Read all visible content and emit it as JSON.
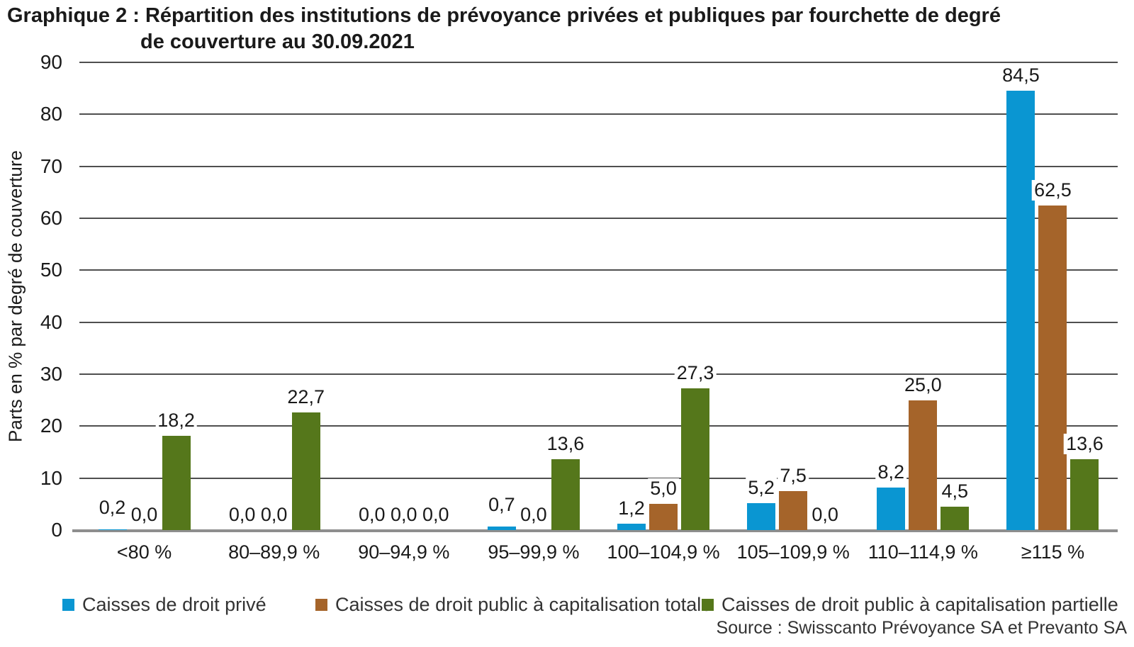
{
  "title": {
    "line1": "Graphique 2 : Répartition des institutions de prévoyance privées et publiques par fourchette de degré",
    "line2": "de couverture au 30.09.2021"
  },
  "source": "Source : Swisscanto Prévoyance SA et Prevanto SA",
  "chart_data": {
    "type": "bar",
    "title": "Graphique 2 : Répartition des institutions de prévoyance privées et publiques par fourchette de degré de couverture au 30.09.2021",
    "xlabel": "",
    "ylabel": "Parts en % par degré de couverture",
    "ylim": [
      0,
      90
    ],
    "yticks": [
      0,
      10,
      20,
      30,
      40,
      50,
      60,
      70,
      80,
      90
    ],
    "grid": "horizontal",
    "legend_position": "bottom",
    "decimal_separator": ",",
    "categories": [
      "<80 %",
      "80–89,9 %",
      "90–94,9 %",
      "95–99,9 %",
      "100–104,9 %",
      "105–109,9 %",
      "110–114,9 %",
      "≥115 %"
    ],
    "series": [
      {
        "name": "Caisses de droit privé",
        "color": "#0a96d2",
        "values": [
          0.2,
          0.0,
          0.0,
          0.7,
          1.2,
          5.2,
          8.2,
          84.5
        ]
      },
      {
        "name": "Caisses de droit public à capitalisation totale",
        "color": "#a5642a",
        "values": [
          0.0,
          0.0,
          0.0,
          0.0,
          5.0,
          7.5,
          25.0,
          62.5
        ]
      },
      {
        "name": "Caisses de droit public à capitalisation partielle",
        "color": "#55771b",
        "values": [
          18.2,
          22.7,
          0.0,
          13.6,
          27.3,
          0.0,
          4.5,
          13.6
        ]
      }
    ]
  }
}
